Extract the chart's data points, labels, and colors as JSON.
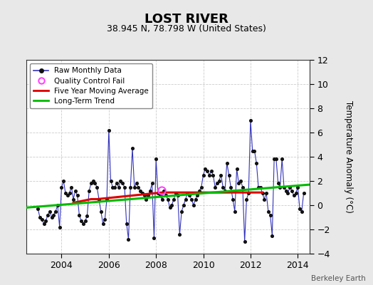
{
  "title": "LOST RIVER",
  "subtitle": "38.945 N, 78.798 W (United States)",
  "ylabel": "Temperature Anomaly (°C)",
  "attribution": "Berkeley Earth",
  "xlim": [
    2002.5,
    2014.5
  ],
  "ylim": [
    -4,
    12
  ],
  "yticks": [
    -4,
    -2,
    0,
    2,
    4,
    6,
    8,
    10,
    12
  ],
  "xticks": [
    2004,
    2006,
    2008,
    2010,
    2012,
    2014
  ],
  "bg_color": "#e8e8e8",
  "plot_bg_color": "#ffffff",
  "raw_line_color": "#3333bb",
  "raw_dot_color": "#111111",
  "moving_avg_color": "#dd0000",
  "trend_color": "#00bb00",
  "qc_fail_color": "#ff44ff",
  "raw_x": [
    2003.0,
    2003.083,
    2003.167,
    2003.25,
    2003.333,
    2003.417,
    2003.5,
    2003.583,
    2003.667,
    2003.75,
    2003.833,
    2003.917,
    2004.0,
    2004.083,
    2004.167,
    2004.25,
    2004.333,
    2004.417,
    2004.5,
    2004.583,
    2004.667,
    2004.75,
    2004.833,
    2004.917,
    2005.0,
    2005.083,
    2005.167,
    2005.25,
    2005.333,
    2005.417,
    2005.5,
    2005.583,
    2005.667,
    2005.75,
    2005.833,
    2005.917,
    2006.0,
    2006.083,
    2006.167,
    2006.25,
    2006.333,
    2006.417,
    2006.5,
    2006.583,
    2006.667,
    2006.75,
    2006.833,
    2006.917,
    2007.0,
    2007.083,
    2007.167,
    2007.25,
    2007.333,
    2007.417,
    2007.5,
    2007.583,
    2007.667,
    2007.75,
    2007.833,
    2007.917,
    2008.0,
    2008.083,
    2008.167,
    2008.25,
    2008.333,
    2008.417,
    2008.5,
    2008.583,
    2008.667,
    2008.75,
    2008.833,
    2008.917,
    2009.0,
    2009.083,
    2009.167,
    2009.25,
    2009.333,
    2009.417,
    2009.5,
    2009.583,
    2009.667,
    2009.75,
    2009.833,
    2009.917,
    2010.0,
    2010.083,
    2010.167,
    2010.25,
    2010.333,
    2010.417,
    2010.5,
    2010.583,
    2010.667,
    2010.75,
    2010.833,
    2010.917,
    2011.0,
    2011.083,
    2011.167,
    2011.25,
    2011.333,
    2011.417,
    2011.5,
    2011.583,
    2011.667,
    2011.75,
    2011.833,
    2011.917,
    2012.0,
    2012.083,
    2012.167,
    2012.25,
    2012.333,
    2012.417,
    2012.5,
    2012.583,
    2012.667,
    2012.75,
    2012.833,
    2012.917,
    2013.0,
    2013.083,
    2013.167,
    2013.25,
    2013.333,
    2013.417,
    2013.5,
    2013.583,
    2013.667,
    2013.75,
    2013.833,
    2013.917,
    2014.0,
    2014.083,
    2014.167,
    2014.25
  ],
  "raw_y": [
    -0.3,
    -1.0,
    -1.2,
    -1.5,
    -1.3,
    -0.8,
    -0.5,
    -1.0,
    -0.8,
    -0.5,
    0.0,
    -1.8,
    1.5,
    2.0,
    1.0,
    0.8,
    1.0,
    1.5,
    0.5,
    1.2,
    0.8,
    -0.8,
    -1.3,
    -1.5,
    -1.3,
    -0.9,
    1.2,
    1.8,
    2.0,
    1.8,
    1.5,
    0.5,
    -0.5,
    -1.5,
    -1.2,
    0.5,
    6.2,
    2.0,
    1.5,
    1.5,
    1.8,
    1.5,
    2.0,
    1.8,
    1.5,
    -1.5,
    -2.8,
    1.5,
    4.7,
    1.5,
    1.8,
    1.5,
    1.2,
    1.0,
    0.8,
    0.5,
    0.8,
    1.2,
    1.8,
    -2.7,
    3.8,
    1.0,
    0.8,
    0.5,
    1.2,
    0.8,
    0.5,
    -0.2,
    0.0,
    0.5,
    1.0,
    0.8,
    -2.4,
    -0.5,
    0.0,
    0.5,
    1.0,
    0.8,
    0.5,
    0.0,
    0.5,
    0.8,
    1.2,
    1.5,
    2.5,
    3.0,
    2.8,
    2.5,
    2.8,
    2.5,
    1.5,
    1.8,
    2.0,
    2.5,
    1.5,
    1.2,
    3.5,
    2.5,
    1.5,
    0.5,
    -0.5,
    3.0,
    1.8,
    2.0,
    1.5,
    -3.0,
    0.5,
    1.0,
    7.0,
    4.5,
    4.5,
    3.5,
    1.5,
    1.5,
    1.0,
    0.5,
    1.0,
    -0.5,
    -0.8,
    -2.5,
    3.8,
    3.8,
    1.8,
    1.5,
    3.8,
    1.5,
    1.2,
    1.0,
    1.5,
    1.2,
    0.8,
    1.0,
    1.5,
    -0.3,
    -0.5,
    1.0
  ],
  "qc_fail_x": [
    2008.25
  ],
  "qc_fail_y": [
    1.2
  ],
  "moving_avg_x": [
    2004.5,
    2004.75,
    2005.0,
    2005.25,
    2005.5,
    2005.75,
    2006.0,
    2006.25,
    2006.5,
    2006.75,
    2007.0,
    2007.25,
    2007.5,
    2007.75,
    2008.0,
    2008.25,
    2008.5,
    2008.75,
    2009.0,
    2009.25,
    2009.5,
    2009.75,
    2010.0,
    2010.25,
    2010.5,
    2010.75,
    2011.0,
    2011.25,
    2011.5,
    2011.75,
    2012.0,
    2012.25,
    2012.5
  ],
  "moving_avg_y": [
    0.2,
    0.3,
    0.4,
    0.5,
    0.5,
    0.55,
    0.6,
    0.65,
    0.7,
    0.75,
    0.8,
    0.85,
    0.9,
    0.95,
    1.0,
    1.05,
    1.05,
    1.05,
    1.05,
    1.05,
    1.05,
    1.05,
    1.05,
    1.05,
    1.05,
    1.05,
    1.05,
    1.05,
    1.05,
    1.05,
    1.05,
    1.05,
    1.05
  ],
  "trend_x": [
    2002.5,
    2014.5
  ],
  "trend_y": [
    -0.2,
    1.7
  ]
}
